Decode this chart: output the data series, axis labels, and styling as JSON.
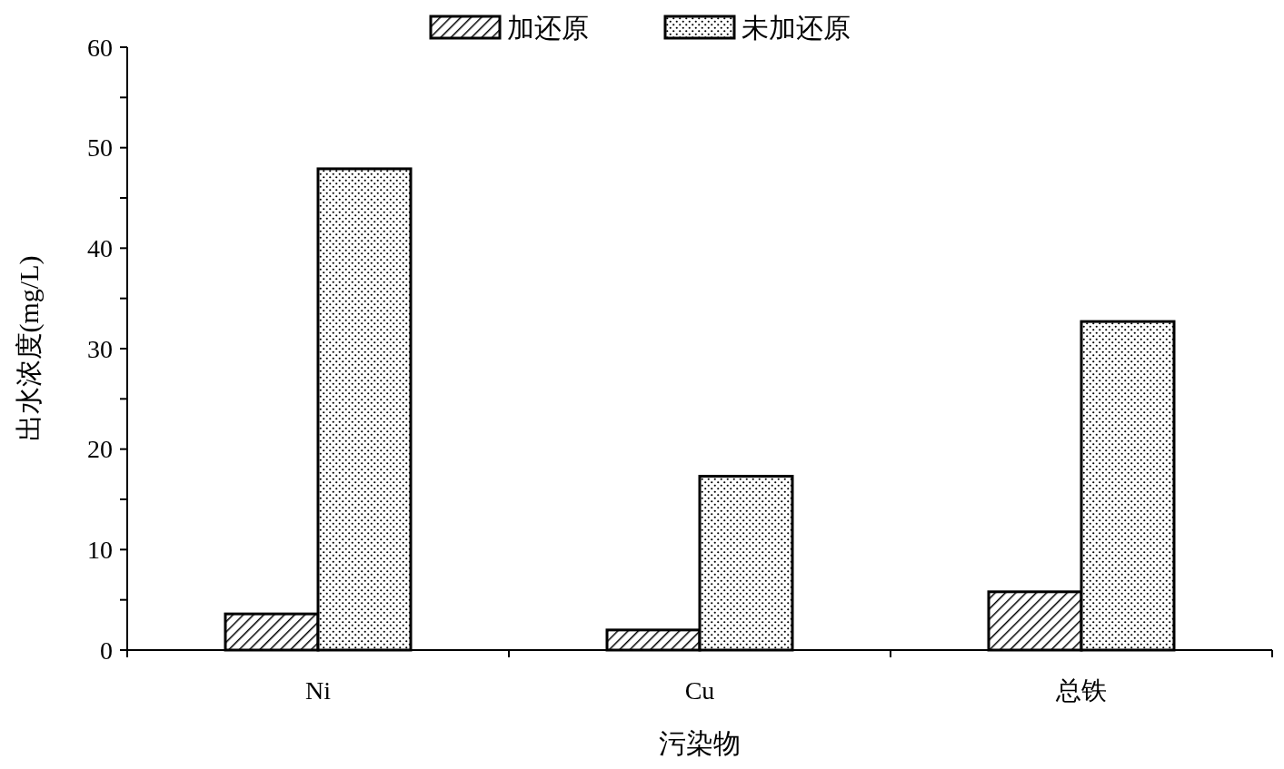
{
  "chart_data": {
    "type": "bar",
    "xlabel": "污染物",
    "ylabel": "出水浓度(mg/L)",
    "categories": [
      "Ni",
      "Cu",
      "总铁"
    ],
    "series": [
      {
        "name": "加还原",
        "color": "#000000",
        "values": [
          3.6,
          2.0,
          5.8
        ]
      },
      {
        "name": "未加还原",
        "color": "#000000",
        "values": [
          47.9,
          17.3,
          32.7
        ]
      }
    ],
    "ylim": [
      0,
      60
    ],
    "yticks": [
      0,
      {
        "value": 5,
        "label": null
      },
      10,
      {
        "value": 15,
        "label": null
      },
      20,
      {
        "value": 25,
        "label": null
      },
      30,
      {
        "value": 35,
        "label": null
      },
      40,
      {
        "value": 45,
        "label": null
      },
      50,
      {
        "value": 55,
        "label": null
      },
      60
    ],
    "legend": "top",
    "grid": false
  }
}
